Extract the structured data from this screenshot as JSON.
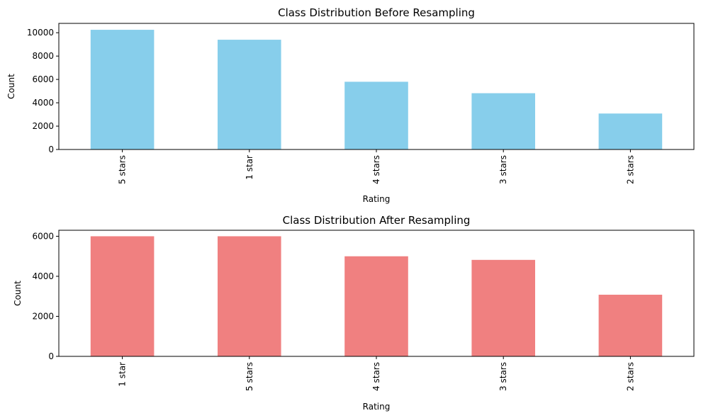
{
  "chart_data": [
    {
      "type": "bar",
      "title": "Class Distribution Before Resampling",
      "xlabel": "Rating",
      "ylabel": "Count",
      "categories": [
        "5 stars",
        "1 star",
        "4 stars",
        "3 stars",
        "2 stars"
      ],
      "values": [
        10250,
        9400,
        5800,
        4820,
        3080
      ],
      "ylim": [
        0,
        10800
      ],
      "yticks": [
        0,
        2000,
        4000,
        6000,
        8000,
        10000
      ],
      "color": "#87CEEB",
      "grid": false
    },
    {
      "type": "bar",
      "title": "Class Distribution After Resampling",
      "xlabel": "Rating",
      "ylabel": "Count",
      "categories": [
        "1 star",
        "5 stars",
        "4 stars",
        "3 stars",
        "2 stars"
      ],
      "values": [
        6000,
        6000,
        5000,
        4820,
        3080
      ],
      "ylim": [
        0,
        6300
      ],
      "yticks": [
        0,
        2000,
        4000,
        6000
      ],
      "color": "#F08080",
      "grid": false
    }
  ]
}
